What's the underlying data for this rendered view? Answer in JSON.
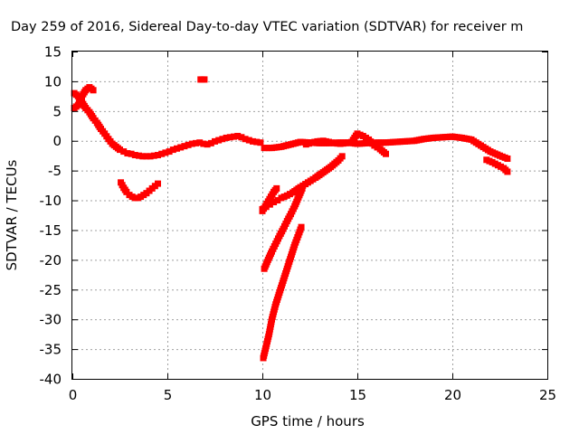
{
  "chart_data": {
    "type": "scatter",
    "title": "Day 259 of 2016, Sidereal Day-to-day VTEC variation (SDTVAR) for receiver m",
    "xlabel": "GPS time / hours",
    "ylabel": "SDTVAR / TECUs",
    "xlim": [
      0,
      25
    ],
    "ylim": [
      -40,
      15
    ],
    "xticks": [
      0,
      5,
      10,
      15,
      20,
      25
    ],
    "yticks": [
      15,
      10,
      5,
      0,
      -5,
      -10,
      -15,
      -20,
      -25,
      -30,
      -35,
      -40
    ],
    "grid": true,
    "marker_color": "#ff0000",
    "series": [
      {
        "x": [
          0.1,
          0.3,
          0.5,
          0.7,
          0.9,
          1.1,
          1.3,
          1.5,
          1.7,
          1.9,
          2.1,
          2.3,
          2.5,
          2.7,
          2.9,
          3.1,
          3.3,
          3.5,
          3.7,
          3.9,
          4.1,
          4.3,
          4.5,
          4.7,
          4.9,
          5.1,
          5.3,
          5.5,
          5.7,
          5.9,
          6.1,
          6.3,
          6.5,
          6.7,
          6.9,
          7.1,
          7.3,
          7.5,
          7.7,
          7.9,
          8.1,
          8.3,
          8.5,
          8.7,
          8.9,
          9.1,
          9.3,
          9.5,
          9.7,
          9.9
        ],
        "y": [
          8.0,
          7.5,
          6.5,
          5.5,
          4.8,
          3.8,
          3.0,
          2.0,
          1.2,
          0.3,
          -0.5,
          -1.0,
          -1.5,
          -1.8,
          -2.1,
          -2.2,
          -2.4,
          -2.5,
          -2.6,
          -2.6,
          -2.6,
          -2.5,
          -2.4,
          -2.2,
          -2.0,
          -1.8,
          -1.5,
          -1.3,
          -1.1,
          -0.9,
          -0.7,
          -0.5,
          -0.4,
          -0.3,
          -0.5,
          -0.6,
          -0.4,
          -0.1,
          0.1,
          0.3,
          0.5,
          0.6,
          0.7,
          0.8,
          0.6,
          0.3,
          0.1,
          -0.1,
          -0.2,
          -0.3
        ]
      },
      {
        "x": [
          0.1,
          0.3,
          0.5,
          0.7,
          0.9,
          1.1
        ],
        "y": [
          5.5,
          6.0,
          7.5,
          8.5,
          9.0,
          8.5
        ]
      },
      {
        "x": [
          6.75,
          6.85,
          6.95
        ],
        "y": [
          10.3,
          10.3,
          10.3
        ]
      },
      {
        "x": [
          2.55,
          2.7,
          2.85,
          3.0,
          3.15,
          3.3,
          3.45,
          3.6,
          3.75,
          3.9,
          4.05,
          4.2,
          4.35,
          4.5
        ],
        "y": [
          -7.0,
          -7.9,
          -8.6,
          -9.1,
          -9.4,
          -9.6,
          -9.6,
          -9.4,
          -9.1,
          -8.8,
          -8.4,
          -8.0,
          -7.6,
          -7.2
        ]
      },
      {
        "x": [
          10.1,
          10.5,
          11.0,
          11.5,
          12.0,
          12.5,
          13.0,
          13.5,
          14.0,
          14.5,
          15.0,
          15.5,
          16.0,
          16.5,
          17.0,
          17.5,
          18.0,
          18.5,
          19.0,
          19.5,
          20.0,
          20.5,
          21.0,
          21.5,
          22.0,
          22.5,
          22.9
        ],
        "y": [
          -1.2,
          -1.2,
          -1.0,
          -0.6,
          -0.2,
          -0.3,
          -0.4,
          -0.4,
          -0.3,
          -0.3,
          -0.5,
          -0.4,
          -0.3,
          -0.3,
          -0.2,
          -0.1,
          0.0,
          0.3,
          0.5,
          0.6,
          0.7,
          0.5,
          0.2,
          -0.8,
          -1.8,
          -2.5,
          -3.0
        ]
      },
      {
        "x": [
          12.3,
          12.6,
          12.9,
          13.2,
          13.5,
          13.8,
          14.1,
          14.4,
          14.7,
          15.0,
          15.3,
          15.6,
          15.9,
          16.2,
          16.5
        ],
        "y": [
          -0.6,
          -0.3,
          -0.1,
          0.0,
          -0.2,
          -0.4,
          -0.5,
          -0.4,
          -0.2,
          1.2,
          0.8,
          0.2,
          -0.8,
          -1.4,
          -2.2
        ]
      },
      {
        "x": [
          21.8,
          22.1,
          22.4,
          22.7,
          22.9
        ],
        "y": [
          -3.2,
          -3.6,
          -4.1,
          -4.6,
          -5.2
        ]
      },
      {
        "x": [
          10.0,
          10.2,
          10.4,
          10.6,
          10.8,
          11.0,
          11.3,
          11.6,
          12.0,
          12.4,
          12.8,
          13.2,
          13.6,
          14.0,
          14.2
        ],
        "y": [
          -11.5,
          -11.1,
          -10.7,
          -10.3,
          -10.0,
          -9.6,
          -9.2,
          -8.7,
          -7.8,
          -7.0,
          -6.2,
          -5.3,
          -4.4,
          -3.3,
          -2.6
        ]
      },
      {
        "x": [
          10.0,
          10.15,
          10.3,
          10.45,
          10.6,
          10.75
        ],
        "y": [
          -11.8,
          -11.0,
          -10.2,
          -9.4,
          -8.6,
          -8.0
        ]
      },
      {
        "x": [
          10.1,
          10.3,
          10.5,
          10.7,
          10.9,
          11.1,
          11.3,
          11.5,
          11.7,
          11.9,
          12.1
        ],
        "y": [
          -21.5,
          -20.0,
          -18.6,
          -17.3,
          -16.0,
          -14.8,
          -13.5,
          -12.3,
          -11.0,
          -9.5,
          -8.0
        ]
      },
      {
        "x": [
          10.05,
          10.2,
          10.35,
          10.5,
          10.7,
          10.9,
          11.1,
          11.3,
          11.5,
          11.7,
          11.9,
          12.05
        ],
        "y": [
          -36.5,
          -34.5,
          -32.5,
          -30.0,
          -27.5,
          -25.5,
          -23.5,
          -21.5,
          -19.5,
          -17.5,
          -15.8,
          -14.5
        ]
      }
    ]
  }
}
